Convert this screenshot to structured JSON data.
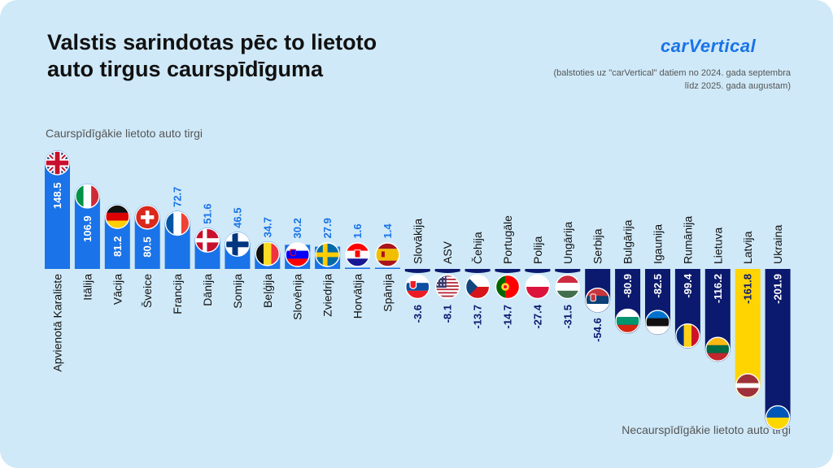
{
  "title": "Valstis sarindotas pēc to lietoto\nauto tirgus caurspīdīguma",
  "brand": "carVertical",
  "note": "(balstoties uz \"carVertical\" datiem no 2024. gada septembra līdz 2025. gada augustam)",
  "top_label": "Caurspīdīgākie lietoto auto tirgi",
  "bottom_label": "Necaurspīdīgākie lietoto auto tirgi",
  "colors": {
    "positive": "#1a73e8",
    "negative": "#0b1a6e",
    "highlight": "#ffd400",
    "positive_label_outside": "#1a73e8",
    "negative_label_outside": "#0b1a6e"
  },
  "chart_data": {
    "type": "bar",
    "categories": [
      "Apvienotā Karaliste",
      "Itālija",
      "Vācija",
      "Šveice",
      "Francija",
      "Dānija",
      "Somija",
      "Beļģija",
      "Slovēnija",
      "Zviedrija",
      "Horvātija",
      "Spānija",
      "Slovākija",
      "ASV",
      "Čehija",
      "Portugāle",
      "Polija",
      "Ungārija",
      "Serbija",
      "Bulgārija",
      "Igaunija",
      "Rumānija",
      "Lietuva",
      "Latvija",
      "Ukraina"
    ],
    "values": [
      148.5,
      106.9,
      81.2,
      80.5,
      72.7,
      51.6,
      46.5,
      34.7,
      30.2,
      27.9,
      1.6,
      1.4,
      -3.6,
      -8.1,
      -13.7,
      -14.7,
      -27.4,
      -31.5,
      -54.6,
      -80.9,
      -82.5,
      -99.4,
      -116.2,
      -161.8,
      -201.9
    ],
    "value_labels": [
      "148.5",
      "106.9",
      "81.2",
      "80.5",
      "72.7",
      "51.6",
      "46.5",
      "34.7",
      "30.2",
      "27.9",
      "1.6",
      "1.4",
      "-3.6",
      "-8.1",
      "-13.7",
      "-14.7",
      "-27.4",
      "-31.5",
      "-54.6",
      "-80.9",
      "-82.5",
      "-99.4",
      "-116.2",
      "-161.8",
      "-201.9"
    ],
    "flags": [
      "gb-flag-icon",
      "it-flag-icon",
      "de-flag-icon",
      "ch-flag-icon",
      "fr-flag-icon",
      "dk-flag-icon",
      "fi-flag-icon",
      "be-flag-icon",
      "si-flag-icon",
      "se-flag-icon",
      "hr-flag-icon",
      "es-flag-icon",
      "sk-flag-icon",
      "us-flag-icon",
      "cz-flag-icon",
      "pt-flag-icon",
      "pl-flag-icon",
      "hu-flag-icon",
      "rs-flag-icon",
      "bg-flag-icon",
      "ee-flag-icon",
      "ro-flag-icon",
      "lt-flag-icon",
      "lv-flag-icon",
      "ua-flag-icon"
    ],
    "highlight_category": "Latvija",
    "ylim": [
      -201.9,
      148.5
    ],
    "grid": false,
    "legend": "none",
    "xlabel": "",
    "ylabel": ""
  }
}
